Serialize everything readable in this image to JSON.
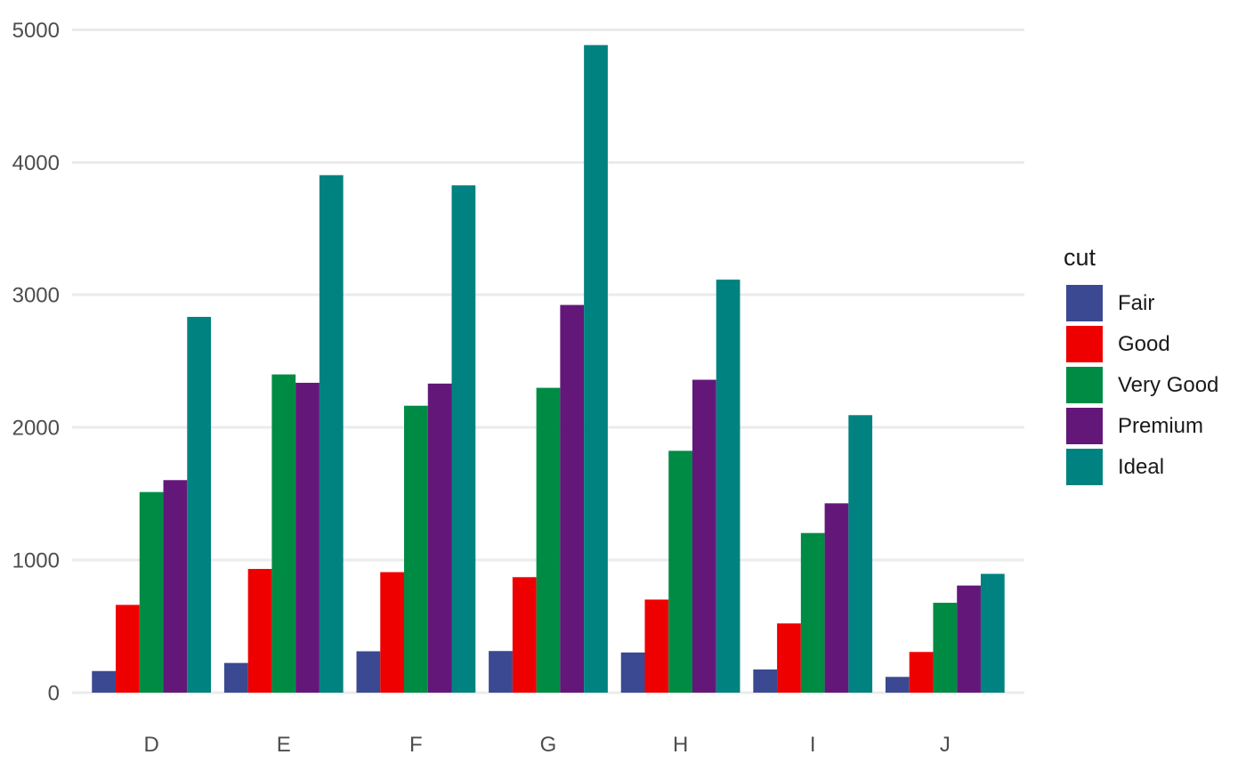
{
  "chart_data": {
    "type": "bar",
    "mode": "grouped-dodge",
    "title": "",
    "xlabel": "",
    "ylabel": "",
    "categories": [
      "D",
      "E",
      "F",
      "G",
      "H",
      "I",
      "J"
    ],
    "series": [
      {
        "name": "Fair",
        "color": "#3B4992",
        "values": [
          163,
          224,
          312,
          314,
          303,
          175,
          119
        ]
      },
      {
        "name": "Good",
        "color": "#EE0000",
        "values": [
          662,
          933,
          909,
          871,
          702,
          522,
          307
        ]
      },
      {
        "name": "Very Good",
        "color": "#008B45",
        "values": [
          1513,
          2400,
          2164,
          2299,
          1824,
          1204,
          678
        ]
      },
      {
        "name": "Premium",
        "color": "#631879",
        "values": [
          1603,
          2337,
          2331,
          2924,
          2360,
          1428,
          808
        ]
      },
      {
        "name": "Ideal",
        "color": "#008280",
        "values": [
          2834,
          3903,
          3826,
          4884,
          3115,
          2093,
          896
        ]
      }
    ],
    "ylim": [
      0,
      5000
    ],
    "yticks": [
      0,
      1000,
      2000,
      3000,
      4000,
      5000
    ],
    "grid": "major-horizontal-only",
    "legend": {
      "title": "cut",
      "position": "right"
    }
  },
  "style": {
    "background": "#FFFFFF",
    "grid_color": "#EBEBEB",
    "tick_label_color": "#4D4D4D",
    "legend_text_color": "#1A1A1A"
  }
}
